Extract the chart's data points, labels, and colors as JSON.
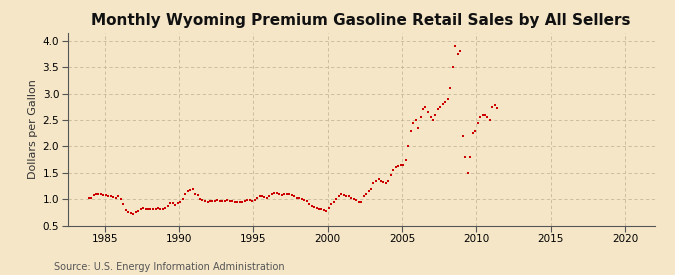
{
  "title": "Monthly Wyoming Premium Gasoline Retail Sales by All Sellers",
  "ylabel": "Dollars per Gallon",
  "source": "Source: U.S. Energy Information Administration",
  "xlim": [
    1982.5,
    2022
  ],
  "ylim": [
    0.5,
    4.15
  ],
  "xticks": [
    1985,
    1990,
    1995,
    2000,
    2005,
    2010,
    2015,
    2020
  ],
  "yticks": [
    0.5,
    1.0,
    1.5,
    2.0,
    2.5,
    3.0,
    3.5,
    4.0
  ],
  "background_color": "#f5e6c8",
  "plot_bg_color": "#f5e6c8",
  "marker_color": "#cc0000",
  "grid_color": "#c8b89a",
  "title_fontsize": 11,
  "label_fontsize": 8,
  "tick_fontsize": 7.5,
  "source_fontsize": 7,
  "data": [
    [
      1983.92,
      1.03
    ],
    [
      1984.08,
      1.03
    ],
    [
      1984.25,
      1.07
    ],
    [
      1984.42,
      1.09
    ],
    [
      1984.58,
      1.1
    ],
    [
      1984.75,
      1.09
    ],
    [
      1984.92,
      1.08
    ],
    [
      1985.08,
      1.07
    ],
    [
      1985.25,
      1.06
    ],
    [
      1985.42,
      1.05
    ],
    [
      1985.58,
      1.04
    ],
    [
      1985.75,
      1.03
    ],
    [
      1985.92,
      1.05
    ],
    [
      1986.08,
      1.0
    ],
    [
      1986.25,
      0.9
    ],
    [
      1986.42,
      0.8
    ],
    [
      1986.58,
      0.75
    ],
    [
      1986.75,
      0.73
    ],
    [
      1986.92,
      0.72
    ],
    [
      1987.08,
      0.75
    ],
    [
      1987.25,
      0.78
    ],
    [
      1987.42,
      0.82
    ],
    [
      1987.58,
      0.83
    ],
    [
      1987.75,
      0.82
    ],
    [
      1987.92,
      0.82
    ],
    [
      1988.08,
      0.82
    ],
    [
      1988.25,
      0.82
    ],
    [
      1988.42,
      0.81
    ],
    [
      1988.58,
      0.83
    ],
    [
      1988.75,
      0.82
    ],
    [
      1988.92,
      0.82
    ],
    [
      1989.08,
      0.83
    ],
    [
      1989.25,
      0.87
    ],
    [
      1989.42,
      0.93
    ],
    [
      1989.58,
      0.92
    ],
    [
      1989.75,
      0.88
    ],
    [
      1989.92,
      0.92
    ],
    [
      1990.08,
      0.95
    ],
    [
      1990.25,
      1.0
    ],
    [
      1990.42,
      1.1
    ],
    [
      1990.58,
      1.15
    ],
    [
      1990.75,
      1.18
    ],
    [
      1990.92,
      1.2
    ],
    [
      1991.08,
      1.1
    ],
    [
      1991.25,
      1.08
    ],
    [
      1991.42,
      1.0
    ],
    [
      1991.58,
      0.98
    ],
    [
      1991.75,
      0.96
    ],
    [
      1991.92,
      0.95
    ],
    [
      1992.08,
      0.96
    ],
    [
      1992.25,
      0.97
    ],
    [
      1992.42,
      0.97
    ],
    [
      1992.58,
      0.98
    ],
    [
      1992.75,
      0.97
    ],
    [
      1992.92,
      0.96
    ],
    [
      1993.08,
      0.97
    ],
    [
      1993.25,
      0.98
    ],
    [
      1993.42,
      0.97
    ],
    [
      1993.58,
      0.97
    ],
    [
      1993.75,
      0.95
    ],
    [
      1993.92,
      0.94
    ],
    [
      1994.08,
      0.94
    ],
    [
      1994.25,
      0.95
    ],
    [
      1994.42,
      0.97
    ],
    [
      1994.58,
      0.99
    ],
    [
      1994.75,
      0.98
    ],
    [
      1994.92,
      0.97
    ],
    [
      1995.08,
      0.98
    ],
    [
      1995.25,
      1.02
    ],
    [
      1995.42,
      1.05
    ],
    [
      1995.58,
      1.06
    ],
    [
      1995.75,
      1.04
    ],
    [
      1995.92,
      1.03
    ],
    [
      1996.08,
      1.05
    ],
    [
      1996.25,
      1.1
    ],
    [
      1996.42,
      1.12
    ],
    [
      1996.58,
      1.12
    ],
    [
      1996.75,
      1.1
    ],
    [
      1996.92,
      1.08
    ],
    [
      1997.08,
      1.09
    ],
    [
      1997.25,
      1.1
    ],
    [
      1997.42,
      1.09
    ],
    [
      1997.58,
      1.08
    ],
    [
      1997.75,
      1.05
    ],
    [
      1997.92,
      1.03
    ],
    [
      1998.08,
      1.02
    ],
    [
      1998.25,
      1.0
    ],
    [
      1998.42,
      0.98
    ],
    [
      1998.58,
      0.96
    ],
    [
      1998.75,
      0.9
    ],
    [
      1998.92,
      0.87
    ],
    [
      1999.08,
      0.85
    ],
    [
      1999.25,
      0.83
    ],
    [
      1999.42,
      0.82
    ],
    [
      1999.58,
      0.82
    ],
    [
      1999.75,
      0.8
    ],
    [
      1999.92,
      0.78
    ],
    [
      2000.08,
      0.83
    ],
    [
      2000.25,
      0.9
    ],
    [
      2000.42,
      0.95
    ],
    [
      2000.58,
      1.0
    ],
    [
      2000.75,
      1.05
    ],
    [
      2000.92,
      1.1
    ],
    [
      2001.08,
      1.08
    ],
    [
      2001.25,
      1.05
    ],
    [
      2001.42,
      1.05
    ],
    [
      2001.58,
      1.03
    ],
    [
      2001.75,
      1.0
    ],
    [
      2001.92,
      0.98
    ],
    [
      2002.08,
      0.95
    ],
    [
      2002.25,
      0.95
    ],
    [
      2002.42,
      1.05
    ],
    [
      2002.58,
      1.1
    ],
    [
      2002.75,
      1.15
    ],
    [
      2002.92,
      1.2
    ],
    [
      2003.08,
      1.3
    ],
    [
      2003.25,
      1.35
    ],
    [
      2003.42,
      1.38
    ],
    [
      2003.58,
      1.35
    ],
    [
      2003.75,
      1.32
    ],
    [
      2003.92,
      1.3
    ],
    [
      2004.08,
      1.35
    ],
    [
      2004.25,
      1.45
    ],
    [
      2004.42,
      1.55
    ],
    [
      2004.58,
      1.6
    ],
    [
      2004.75,
      1.62
    ],
    [
      2004.92,
      1.65
    ],
    [
      2005.08,
      1.65
    ],
    [
      2005.25,
      1.75
    ],
    [
      2005.42,
      2.0
    ],
    [
      2005.58,
      2.3
    ],
    [
      2005.75,
      2.45
    ],
    [
      2005.92,
      2.5
    ],
    [
      2006.08,
      2.35
    ],
    [
      2006.25,
      2.55
    ],
    [
      2006.42,
      2.7
    ],
    [
      2006.58,
      2.75
    ],
    [
      2006.75,
      2.65
    ],
    [
      2006.92,
      2.55
    ],
    [
      2007.08,
      2.5
    ],
    [
      2007.25,
      2.6
    ],
    [
      2007.42,
      2.7
    ],
    [
      2007.58,
      2.75
    ],
    [
      2007.75,
      2.8
    ],
    [
      2007.92,
      2.85
    ],
    [
      2008.08,
      2.9
    ],
    [
      2008.25,
      3.1
    ],
    [
      2008.42,
      3.5
    ],
    [
      2008.58,
      3.9
    ],
    [
      2008.75,
      3.75
    ],
    [
      2008.92,
      3.8
    ],
    [
      2009.08,
      2.2
    ],
    [
      2009.25,
      1.8
    ],
    [
      2009.42,
      1.5
    ],
    [
      2009.58,
      1.8
    ],
    [
      2009.75,
      2.25
    ],
    [
      2009.92,
      2.3
    ],
    [
      2010.08,
      2.45
    ],
    [
      2010.25,
      2.55
    ],
    [
      2010.42,
      2.6
    ],
    [
      2010.58,
      2.6
    ],
    [
      2010.75,
      2.55
    ],
    [
      2010.92,
      2.5
    ],
    [
      2011.08,
      2.75
    ],
    [
      2011.25,
      2.78
    ],
    [
      2011.42,
      2.72
    ]
  ]
}
